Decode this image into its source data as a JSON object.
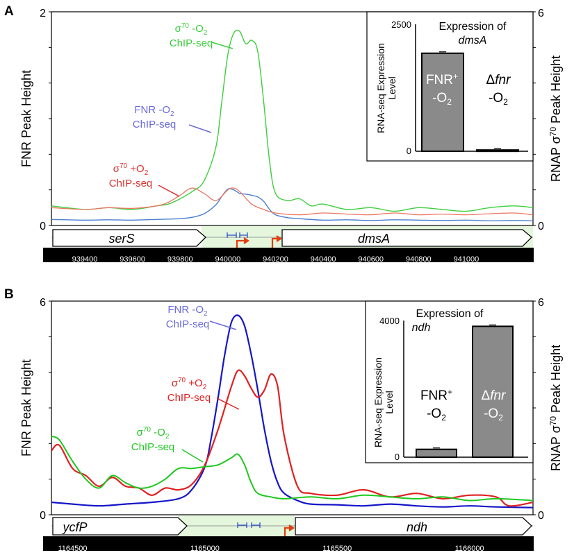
{
  "chart_data": [
    {
      "panel": "A",
      "type": "line",
      "ylabel_left": "FNR Peak Height",
      "ylabel_right": "RNAP σ70 Peak Height",
      "ylim_left": [
        0,
        2
      ],
      "ylim_right": [
        0,
        6
      ],
      "left_ticks": [
        "0",
        "2"
      ],
      "right_ticks": [
        "0",
        "6"
      ],
      "xlim": [
        939260,
        941280
      ],
      "x_ticks": [
        939400,
        939600,
        939800,
        940000,
        940200,
        940400,
        940600,
        940800,
        941000
      ],
      "x_tick_labels": [
        "939400",
        "939600",
        "939800",
        "940000",
        "940200",
        "940400",
        "940600",
        "940800",
        "941000"
      ],
      "genes": [
        {
          "name": "serS",
          "start": 939270,
          "end": 939900,
          "strand": "+"
        },
        {
          "name": "dmsA",
          "start": 940195,
          "end": 941270,
          "strand": "+"
        }
      ],
      "shaded_region": [
        939900,
        941270
      ],
      "promoter_arrows": [
        940050,
        940180
      ],
      "fnr_sites": [
        939995,
        940030
      ],
      "series": [
        {
          "key": "sigma_minus",
          "color": "#3ccf3c",
          "x": [
            939260,
            939400,
            939500,
            939600,
            939700,
            939750,
            939800,
            939850,
            939900,
            939950,
            939975,
            940000,
            940025,
            940050,
            940075,
            940100,
            940125,
            940150,
            940175,
            940200,
            940250,
            940300,
            940350,
            940400,
            940500,
            940600,
            940700,
            940800,
            940900,
            941000,
            941100,
            941200,
            941280
          ],
          "y": [
            0.55,
            0.45,
            0.5,
            0.45,
            0.55,
            0.6,
            0.75,
            0.95,
            1.25,
            2.2,
            3.5,
            4.8,
            5.4,
            5.45,
            5.1,
            5.2,
            4.9,
            3.5,
            1.8,
            0.9,
            0.7,
            0.75,
            0.55,
            0.6,
            0.45,
            0.5,
            0.4,
            0.5,
            0.45,
            0.4,
            0.5,
            0.55,
            0.5
          ]
        },
        {
          "key": "fnr",
          "color": "#4a7fd0",
          "x": [
            939260,
            939400,
            939500,
            939600,
            939700,
            939800,
            939850,
            939900,
            939950,
            939975,
            940000,
            940025,
            940050,
            940075,
            940100,
            940125,
            940150,
            940175,
            940200,
            940250,
            940300,
            940400,
            940500,
            940600,
            940700,
            940800,
            940900,
            941000,
            941100,
            941200,
            941280
          ],
          "y": [
            0.17,
            0.15,
            0.16,
            0.15,
            0.17,
            0.19,
            0.23,
            0.33,
            0.58,
            0.82,
            1.02,
            1.0,
            0.9,
            0.88,
            0.85,
            0.8,
            0.68,
            0.45,
            0.3,
            0.22,
            0.19,
            0.15,
            0.16,
            0.14,
            0.16,
            0.15,
            0.14,
            0.15,
            0.13,
            0.14,
            0.13
          ]
        },
        {
          "key": "sigma_plus",
          "color": "#ea7660",
          "x": [
            939260,
            939400,
            939500,
            939600,
            939700,
            939750,
            939800,
            939850,
            939900,
            939950,
            940000,
            940025,
            940050,
            940100,
            940150,
            940200,
            940300,
            940400,
            940500,
            940600,
            940700,
            940800,
            940900,
            941000,
            941100,
            941200,
            941280
          ],
          "y": [
            0.5,
            0.45,
            0.5,
            0.48,
            0.55,
            0.65,
            0.85,
            1.05,
            0.9,
            0.7,
            1.0,
            1.05,
            0.95,
            0.6,
            0.45,
            0.35,
            0.3,
            0.35,
            0.32,
            0.3,
            0.35,
            0.3,
            0.32,
            0.3,
            0.33,
            0.35,
            0.3
          ]
        }
      ],
      "inset": {
        "type": "bar",
        "title": [
          "Expression of",
          "dmsA"
        ],
        "ylabel": "RNA-seq Expression Level",
        "ylim": [
          0,
          2500
        ],
        "y_ticks": [
          "0",
          "2500"
        ],
        "bars": [
          {
            "label": "FNR+ -O2",
            "value": 1930
          },
          {
            "label": "Δfnr -O2",
            "value": 25
          }
        ]
      }
    },
    {
      "panel": "B",
      "type": "line",
      "ylabel_left": "FNR Peak Height",
      "ylabel_right": "RNAP σ70 Peak Height",
      "ylim_left": [
        0,
        6
      ],
      "ylim_right": [
        0,
        6
      ],
      "left_ticks": [
        "0",
        "6"
      ],
      "right_ticks": [
        "0",
        "6"
      ],
      "xlim": [
        1164420,
        1166240
      ],
      "x_ticks": [
        1164500,
        1165000,
        1165500,
        1166000
      ],
      "x_tick_labels": [
        "1164500",
        "1165000",
        "1165500",
        "1166000"
      ],
      "genes": [
        {
          "name": "ycfP",
          "start": 1164425,
          "end": 1164900,
          "strand": "+"
        },
        {
          "name": "ndh",
          "start": 1165300,
          "end": 1166235,
          "strand": "+"
        }
      ],
      "shaded_region": [
        1164850,
        1165300
      ],
      "promoter_arrows": [
        1165290
      ],
      "fnr_sites": [
        1165090,
        1165135
      ],
      "series": [
        {
          "key": "fnr",
          "color": "#1515c8",
          "x": [
            1164420,
            1164500,
            1164600,
            1164700,
            1164800,
            1164900,
            1164950,
            1165000,
            1165025,
            1165050,
            1165075,
            1165100,
            1165125,
            1165150,
            1165175,
            1165200,
            1165225,
            1165250,
            1165275,
            1165300,
            1165350,
            1165400,
            1165500,
            1165600,
            1165700,
            1165800,
            1165900,
            1166000,
            1166100,
            1166240
          ],
          "y": [
            0.35,
            0.3,
            0.25,
            0.3,
            0.35,
            0.45,
            0.7,
            1.35,
            2.2,
            3.3,
            4.5,
            5.4,
            5.6,
            5.3,
            4.5,
            3.5,
            2.4,
            1.5,
            0.9,
            0.6,
            0.4,
            0.3,
            0.28,
            0.25,
            0.3,
            0.25,
            0.22,
            0.25,
            0.22,
            0.2
          ]
        },
        {
          "key": "sigma_plus",
          "color": "#e02020",
          "x": [
            1164420,
            1164450,
            1164500,
            1164550,
            1164600,
            1164650,
            1164700,
            1164750,
            1164800,
            1164850,
            1164900,
            1164950,
            1165000,
            1165050,
            1165100,
            1165125,
            1165150,
            1165175,
            1165200,
            1165225,
            1165250,
            1165275,
            1165300,
            1165350,
            1165400,
            1165500,
            1165600,
            1165700,
            1165800,
            1165900,
            1166000,
            1166100,
            1166150,
            1166240
          ],
          "y": [
            1.8,
            1.95,
            1.3,
            1.1,
            0.8,
            1.05,
            0.8,
            0.75,
            0.55,
            0.75,
            0.7,
            0.85,
            1.4,
            2.4,
            3.6,
            4.05,
            3.9,
            3.55,
            3.3,
            3.5,
            3.95,
            3.6,
            2.2,
            0.8,
            0.6,
            0.55,
            0.7,
            0.5,
            0.6,
            0.45,
            0.55,
            0.5,
            0.25,
            0.35
          ]
        },
        {
          "key": "sigma_minus",
          "color": "#1ec81e",
          "x": [
            1164420,
            1164450,
            1164500,
            1164550,
            1164600,
            1164650,
            1164700,
            1164750,
            1164800,
            1164850,
            1164900,
            1164950,
            1165000,
            1165050,
            1165100,
            1165125,
            1165150,
            1165175,
            1165200,
            1165250,
            1165300,
            1165400,
            1165500,
            1165600,
            1165700,
            1165800,
            1165900,
            1166000,
            1166100,
            1166240
          ],
          "y": [
            2.2,
            2.1,
            1.5,
            1.0,
            0.75,
            1.1,
            0.9,
            0.75,
            0.8,
            1.0,
            1.3,
            1.3,
            1.35,
            1.4,
            1.6,
            1.7,
            1.4,
            0.9,
            0.6,
            0.5,
            0.45,
            0.5,
            0.45,
            0.55,
            0.5,
            0.45,
            0.5,
            0.4,
            0.45,
            0.4
          ]
        }
      ],
      "inset": {
        "type": "bar",
        "title": [
          "Expression of",
          "ndh"
        ],
        "ylabel": "RNA-seq Expression Level",
        "ylim": [
          0,
          4000
        ],
        "y_ticks": [
          "0",
          "4000"
        ],
        "bars": [
          {
            "label": "FNR+ -O2",
            "value": 230
          },
          {
            "label": "Δfnr -O2",
            "value": 3830
          }
        ]
      }
    }
  ],
  "labels": {
    "panel_a": "A",
    "panel_b": "B",
    "chip": "ChIP-seq",
    "sigma70": "σ70",
    "minus_o2": "-O2",
    "plus_o2": "+O2",
    "fnr": "FNR",
    "fnr_plus": "FNR+",
    "delta": "Δ",
    "fnr_italic": "fnr",
    "sigma_pre": "σ",
    "sup70": "70",
    "o_letter": "-O",
    "plus_o": "+O",
    "sub2": "2",
    "sup_plus": "+",
    "right_axis_text": "RNAP σ70 Peak Height"
  }
}
